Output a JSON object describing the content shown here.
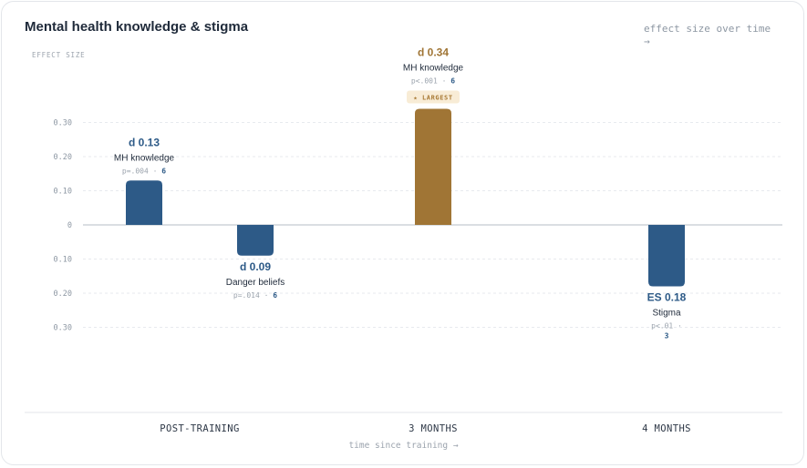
{
  "header": {
    "title": "Mental health knowledge & stigma",
    "subtitle": "effect size over time →"
  },
  "colors": {
    "bar": "#2d5a87",
    "highlight": "#a07535",
    "highlight_badge_bg": "#f8ecd6",
    "k_text": "#2d5a87"
  },
  "chart_data": {
    "type": "bar",
    "title": "Mental health knowledge & stigma",
    "subtitle": "effect size over time →",
    "ylabel": "EFFECT SIZE",
    "xlabel": "time since training →",
    "categories": [
      "POST-TRAINING",
      "3 MONTHS",
      "4 MONTHS"
    ],
    "yticks": [
      {
        "value": 0.3,
        "label": "0.30"
      },
      {
        "value": 0.2,
        "label": "0.20"
      },
      {
        "value": 0.1,
        "label": "0.10"
      },
      {
        "value": 0,
        "label": "0"
      },
      {
        "value": -0.1,
        "label": "0.10"
      },
      {
        "value": -0.2,
        "label": "0.20"
      },
      {
        "value": -0.3,
        "label": "0.30"
      }
    ],
    "ylim": [
      -0.3,
      0.3
    ],
    "grid": true,
    "bars": [
      {
        "category": "POST-TRAINING",
        "value": 0.13,
        "effect_label": "d 0.13",
        "measure": "MH knowledge",
        "p_text": "p=.004 · ",
        "k": "6",
        "highlight": false
      },
      {
        "category": "POST-TRAINING",
        "value": -0.09,
        "effect_label": "d 0.09",
        "measure": "Danger beliefs",
        "p_text": "p=.014 · ",
        "k": "6",
        "highlight": false
      },
      {
        "category": "3 MONTHS",
        "value": 0.34,
        "effect_label": "d 0.34",
        "measure": "MH knowledge",
        "p_text": "p<.001 · ",
        "k": "6",
        "highlight": true,
        "badge": "★ LARGEST"
      },
      {
        "category": "4 MONTHS",
        "value": -0.18,
        "effect_label": "ES 0.18",
        "measure": "Stigma",
        "p_text": "p<.01 · ",
        "k": "3",
        "highlight": false
      }
    ]
  }
}
